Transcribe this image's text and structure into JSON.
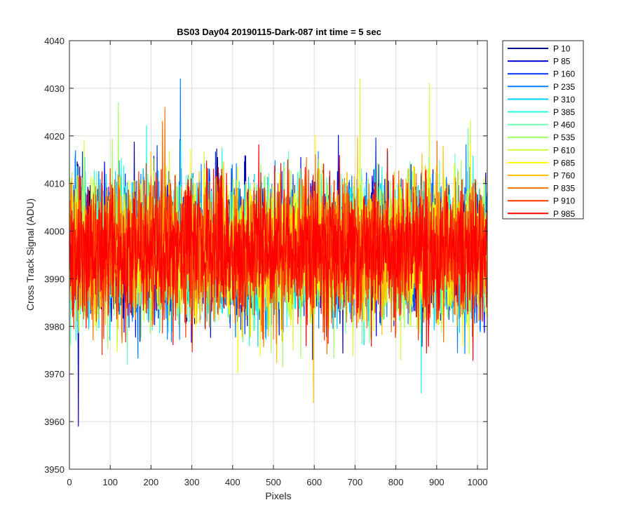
{
  "chart_data": {
    "type": "line",
    "title": "BS03 Day04 20190115-Dark-087 int time = 5 sec",
    "xlabel": "Pixels",
    "ylabel": "Cross Track Signal (ADU)",
    "xlim": [
      0,
      1024
    ],
    "ylim": [
      3950,
      4040
    ],
    "xticks": [
      0,
      100,
      200,
      300,
      400,
      500,
      600,
      700,
      800,
      900,
      1000
    ],
    "yticks": [
      3950,
      3960,
      3970,
      3980,
      3990,
      4000,
      4010,
      4020,
      4030,
      4040
    ],
    "grid": true,
    "legend_position": "outside-top-right",
    "series": [
      {
        "name": "P 10",
        "color": "#00008f"
      },
      {
        "name": "P 85",
        "color": "#0000df"
      },
      {
        "name": "P 160",
        "color": "#0030ff"
      },
      {
        "name": "P 235",
        "color": "#0080ff"
      },
      {
        "name": "P 310",
        "color": "#00cfff"
      },
      {
        "name": "P 385",
        "color": "#20ffdf"
      },
      {
        "name": "P 460",
        "color": "#70ffaf"
      },
      {
        "name": "P 535",
        "color": "#9fff60"
      },
      {
        "name": "P 610",
        "color": "#cfff30"
      },
      {
        "name": "P 685",
        "color": "#ffff00"
      },
      {
        "name": "P 760",
        "color": "#ffbf00"
      },
      {
        "name": "P 835",
        "color": "#ff7000"
      },
      {
        "name": "P 910",
        "color": "#ff3000"
      },
      {
        "name": "P 985",
        "color": "#ff0000"
      }
    ],
    "signal_summary": {
      "mean": 3996,
      "std": 7,
      "notable_extremes": [
        {
          "series": "P 85",
          "x": 22,
          "y": 3959
        },
        {
          "series": "P 235",
          "x": 272,
          "y": 4032
        },
        {
          "series": "P 610",
          "x": 712,
          "y": 4032
        },
        {
          "series": "P 610",
          "x": 882,
          "y": 4031
        },
        {
          "series": "P 760",
          "x": 598,
          "y": 3964
        },
        {
          "series": "P 385",
          "x": 862,
          "y": 3966
        },
        {
          "series": "P 535",
          "x": 120,
          "y": 4027
        },
        {
          "series": "P 835",
          "x": 234,
          "y": 4026
        }
      ]
    }
  }
}
